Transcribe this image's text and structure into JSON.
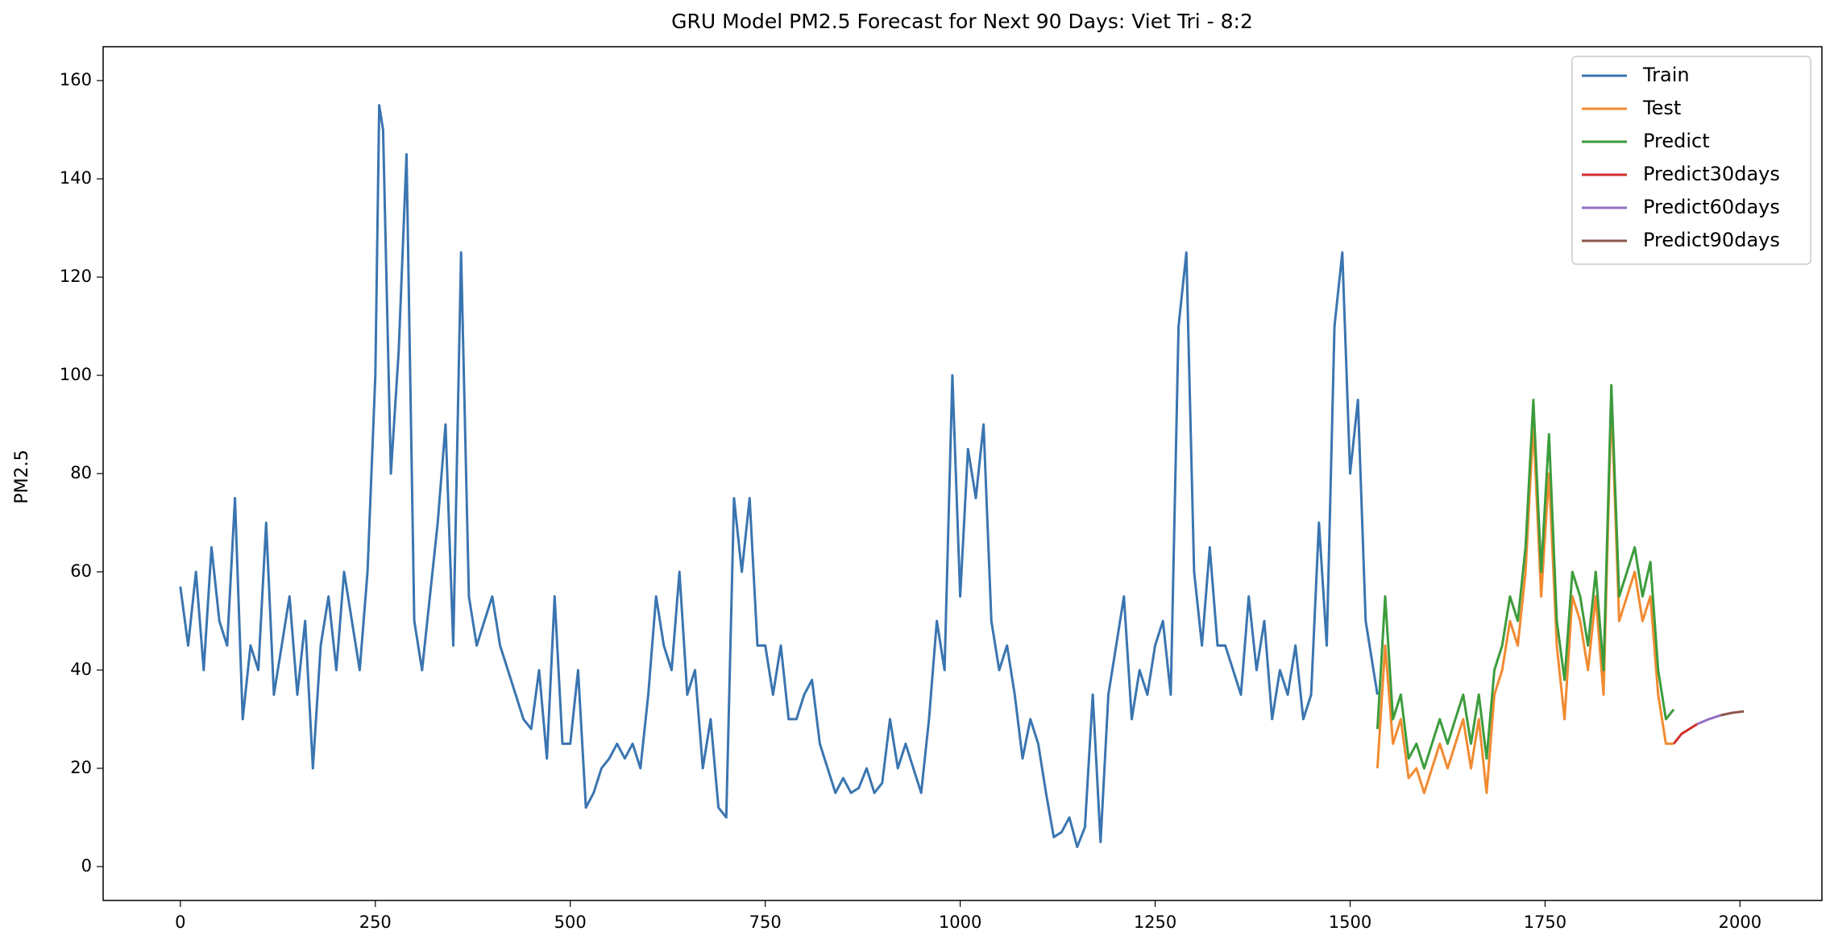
{
  "chart_data": {
    "type": "line",
    "title": "GRU Model PM2.5 Forecast for Next 90 Days: Viet Tri - 8:2",
    "y_label": "PM2.5",
    "xlim": [
      -99,
      2105
    ],
    "ylim": [
      -6.9,
      166.9
    ],
    "xticks": [
      0,
      250,
      500,
      750,
      1000,
      1250,
      1500,
      1750,
      2000
    ],
    "yticks": [
      0,
      20,
      40,
      60,
      80,
      100,
      120,
      140,
      160
    ],
    "grid": false,
    "legend": "upper right",
    "series": [
      {
        "name": "Train",
        "color": "#3a75b0",
        "x": [
          0,
          10,
          20,
          30,
          40,
          50,
          60,
          70,
          80,
          90,
          100,
          110,
          120,
          130,
          140,
          150,
          160,
          170,
          180,
          190,
          200,
          210,
          220,
          230,
          240,
          250,
          255,
          260,
          270,
          280,
          290,
          300,
          310,
          320,
          330,
          340,
          350,
          360,
          370,
          380,
          390,
          400,
          410,
          420,
          430,
          440,
          450,
          460,
          470,
          480,
          490,
          500,
          510,
          520,
          530,
          540,
          550,
          560,
          570,
          580,
          590,
          600,
          610,
          620,
          630,
          640,
          650,
          660,
          670,
          680,
          690,
          700,
          710,
          720,
          730,
          740,
          750,
          760,
          770,
          780,
          790,
          800,
          810,
          820,
          830,
          840,
          850,
          860,
          870,
          880,
          890,
          900,
          910,
          920,
          930,
          940,
          950,
          960,
          970,
          980,
          990,
          1000,
          1010,
          1020,
          1030,
          1040,
          1050,
          1060,
          1070,
          1080,
          1090,
          1100,
          1110,
          1120,
          1130,
          1140,
          1150,
          1160,
          1170,
          1180,
          1190,
          1200,
          1210,
          1220,
          1230,
          1240,
          1250,
          1260,
          1270,
          1280,
          1290,
          1300,
          1310,
          1320,
          1330,
          1340,
          1350,
          1360,
          1370,
          1380,
          1390,
          1400,
          1410,
          1420,
          1430,
          1440,
          1450,
          1460,
          1470,
          1480,
          1490,
          1500,
          1510,
          1520,
          1530,
          1535
        ],
        "values": [
          57,
          45,
          60,
          40,
          65,
          50,
          45,
          75,
          30,
          45,
          40,
          70,
          35,
          45,
          55,
          35,
          50,
          20,
          45,
          55,
          40,
          60,
          50,
          40,
          60,
          100,
          155,
          150,
          80,
          105,
          145,
          50,
          40,
          55,
          70,
          90,
          45,
          125,
          55,
          45,
          50,
          55,
          45,
          40,
          35,
          30,
          28,
          40,
          22,
          55,
          25,
          25,
          40,
          12,
          15,
          20,
          22,
          25,
          22,
          25,
          20,
          35,
          55,
          45,
          40,
          60,
          35,
          40,
          20,
          30,
          12,
          10,
          75,
          60,
          75,
          45,
          45,
          35,
          45,
          30,
          30,
          35,
          38,
          25,
          20,
          15,
          18,
          15,
          16,
          20,
          15,
          17,
          30,
          20,
          25,
          20,
          15,
          30,
          50,
          40,
          100,
          55,
          85,
          75,
          90,
          50,
          40,
          45,
          35,
          22,
          30,
          25,
          15,
          6,
          7,
          10,
          4,
          8,
          35,
          5,
          35,
          45,
          55,
          30,
          40,
          35,
          45,
          50,
          35,
          110,
          125,
          60,
          45,
          65,
          45,
          45,
          40,
          35,
          55,
          40,
          50,
          30,
          40,
          35,
          45,
          30,
          35,
          70,
          45,
          110,
          125,
          80,
          95,
          50,
          40,
          35
        ]
      },
      {
        "name": "Test",
        "color": "#f28a30",
        "x": [
          1535,
          1545,
          1555,
          1565,
          1575,
          1585,
          1595,
          1605,
          1615,
          1625,
          1635,
          1645,
          1655,
          1665,
          1675,
          1685,
          1695,
          1705,
          1715,
          1725,
          1735,
          1745,
          1755,
          1765,
          1775,
          1785,
          1795,
          1805,
          1815,
          1825,
          1835,
          1845,
          1855,
          1865,
          1875,
          1885,
          1895,
          1905,
          1915
        ],
        "values": [
          20,
          45,
          25,
          30,
          18,
          20,
          15,
          20,
          25,
          20,
          25,
          30,
          20,
          30,
          15,
          35,
          40,
          50,
          45,
          60,
          90,
          55,
          80,
          45,
          30,
          55,
          50,
          40,
          55,
          35,
          95,
          50,
          55,
          60,
          50,
          55,
          35,
          25,
          25
        ]
      },
      {
        "name": "Predict",
        "color": "#3c9c3c",
        "x": [
          1535,
          1545,
          1555,
          1565,
          1575,
          1585,
          1595,
          1605,
          1615,
          1625,
          1635,
          1645,
          1655,
          1665,
          1675,
          1685,
          1695,
          1705,
          1715,
          1725,
          1735,
          1745,
          1755,
          1765,
          1775,
          1785,
          1795,
          1805,
          1815,
          1825,
          1835,
          1845,
          1855,
          1865,
          1875,
          1885,
          1895,
          1905,
          1915
        ],
        "values": [
          28,
          55,
          30,
          35,
          22,
          25,
          20,
          25,
          30,
          25,
          30,
          35,
          25,
          35,
          22,
          40,
          45,
          55,
          50,
          65,
          95,
          60,
          88,
          50,
          38,
          60,
          55,
          45,
          60,
          40,
          98,
          55,
          60,
          65,
          55,
          62,
          40,
          30,
          32
        ]
      },
      {
        "name": "Predict30days",
        "color": "#d0302d",
        "x": [
          1915,
          1925,
          1935,
          1945
        ],
        "values": [
          25,
          27,
          28,
          29
        ]
      },
      {
        "name": "Predict60days",
        "color": "#9470c4",
        "x": [
          1945,
          1960,
          1975
        ],
        "values": [
          29,
          30,
          30.8
        ]
      },
      {
        "name": "Predict90days",
        "color": "#8c564b",
        "x": [
          1975,
          1990,
          2005
        ],
        "values": [
          30.8,
          31.3,
          31.6
        ]
      }
    ]
  }
}
